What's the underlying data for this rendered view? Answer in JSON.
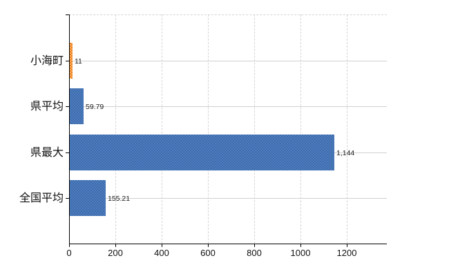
{
  "chart_data": {
    "type": "bar",
    "orientation": "horizontal",
    "title": "",
    "xlabel": "",
    "ylabel": "",
    "categories": [
      "小海町",
      "県平均",
      "県最大",
      "全国平均"
    ],
    "values": [
      11,
      59.79,
      1144,
      155.21
    ],
    "value_labels": [
      "11",
      "59.79",
      "1,144",
      "155.21"
    ],
    "highlight_index": 0,
    "x_ticks": [
      0,
      200,
      400,
      600,
      800,
      1000,
      1200
    ],
    "x_tick_labels": [
      "0",
      "200",
      "400",
      "600",
      "800",
      "1000",
      "1200"
    ],
    "xlim": [
      0,
      1372.8
    ],
    "grid": true,
    "legend": false,
    "colors": {
      "bar": "#3e6cab",
      "bar_pattern": "#4e7dc0",
      "highlight_bar": "#ec7a1a",
      "highlight_pattern": "#f9b465",
      "gridline": "#cfcfcf",
      "dashed_gridline": "#d4d4d4",
      "axis": "#000000",
      "text": "#111111"
    }
  }
}
